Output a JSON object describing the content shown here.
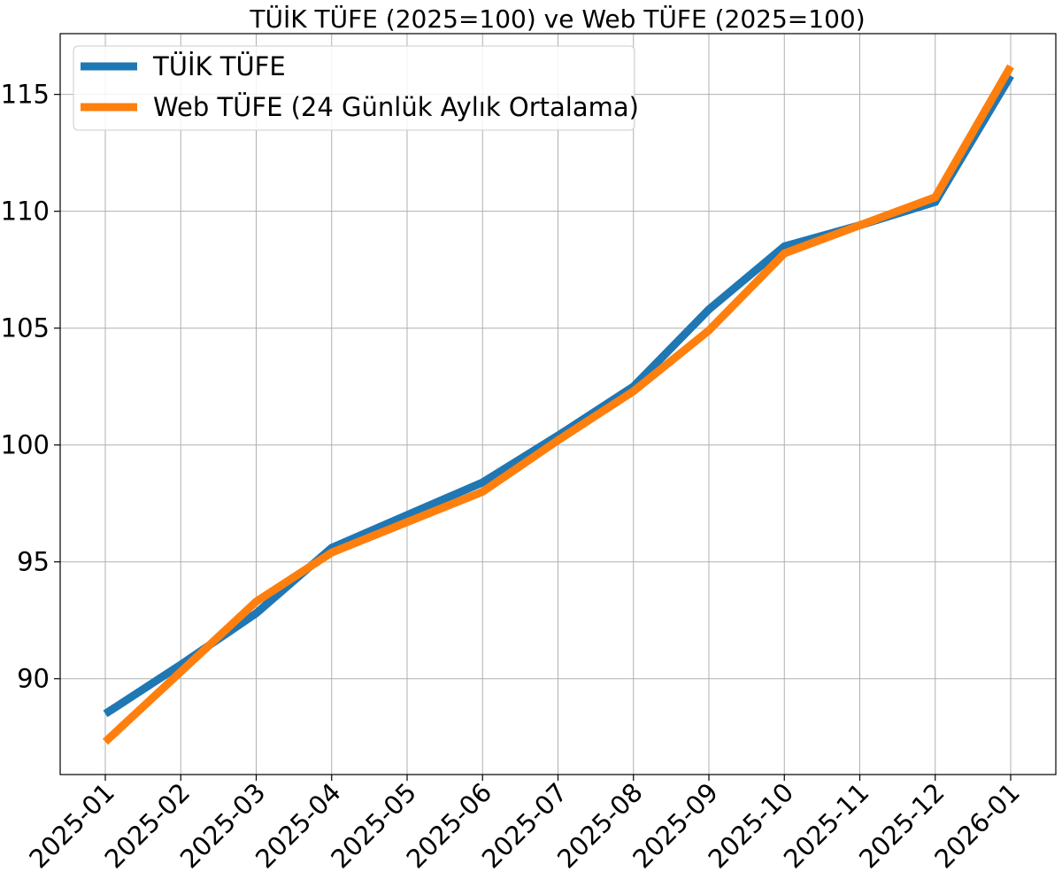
{
  "chart_data": {
    "type": "line",
    "title": "TÜİK TÜFE (2025=100) ve Web TÜFE (2025=100)",
    "xlabel": "",
    "ylabel": "",
    "categories": [
      "2025-01",
      "2025-02",
      "2025-03",
      "2025-04",
      "2025-05",
      "2025-06",
      "2025-07",
      "2025-08",
      "2025-09",
      "2025-10",
      "2025-11",
      "2025-12",
      "2026-01"
    ],
    "ylim": [
      85.9,
      117.6
    ],
    "yticks": [
      90,
      95,
      100,
      105,
      110,
      115
    ],
    "grid": true,
    "legend_position": "top-left",
    "series": [
      {
        "name": "TÜİK TÜFE",
        "color": "#1f77b4",
        "values": [
          88.5,
          90.6,
          92.8,
          95.6,
          97.0,
          98.4,
          100.4,
          102.5,
          105.8,
          108.5,
          109.4,
          110.4,
          115.8
        ]
      },
      {
        "name": "Web TÜFE (24 Günlük Aylık Ortalama)",
        "color": "#ff7f0e",
        "values": [
          87.3,
          90.3,
          93.3,
          95.4,
          96.7,
          98.0,
          100.2,
          102.3,
          104.9,
          108.2,
          109.4,
          110.6,
          116.2
        ]
      }
    ]
  }
}
